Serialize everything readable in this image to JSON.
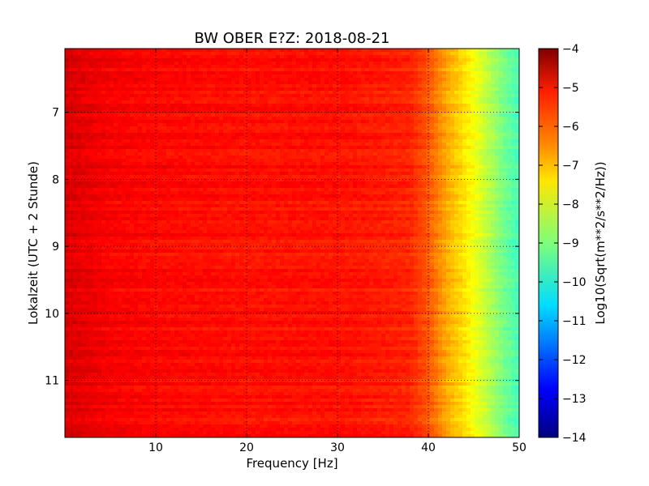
{
  "chart_data": {
    "type": "heatmap",
    "title": "BW OBER E?Z: 2018-08-21",
    "xlabel": "Frequency [Hz]",
    "ylabel": "Lokalzeit (UTC + 2 Stunde)",
    "xlim": [
      0,
      50
    ],
    "ylim": [
      11.85,
      6.05
    ],
    "x_ticks": [
      10,
      20,
      30,
      40,
      50
    ],
    "y_ticks": [
      7,
      8,
      9,
      10,
      11
    ],
    "grid": true,
    "colorbar": {
      "label": "Log10(Sqrt(m**2/s**2/Hz))",
      "range": [
        -14,
        -4
      ],
      "ticks": [
        -4,
        -5,
        -6,
        -7,
        -8,
        -9,
        -10,
        -11,
        -12,
        -13,
        -14
      ],
      "colormap": "jet"
    },
    "spectral_profile": {
      "frequency_hz": [
        0,
        5,
        10,
        20,
        30,
        38,
        40,
        42,
        44,
        46,
        48,
        50
      ],
      "log10_amplitude": [
        -4.9,
        -5.2,
        -5.3,
        -5.4,
        -5.4,
        -5.6,
        -6.1,
        -6.9,
        -7.5,
        -8.2,
        -9.0,
        -9.6
      ]
    }
  }
}
